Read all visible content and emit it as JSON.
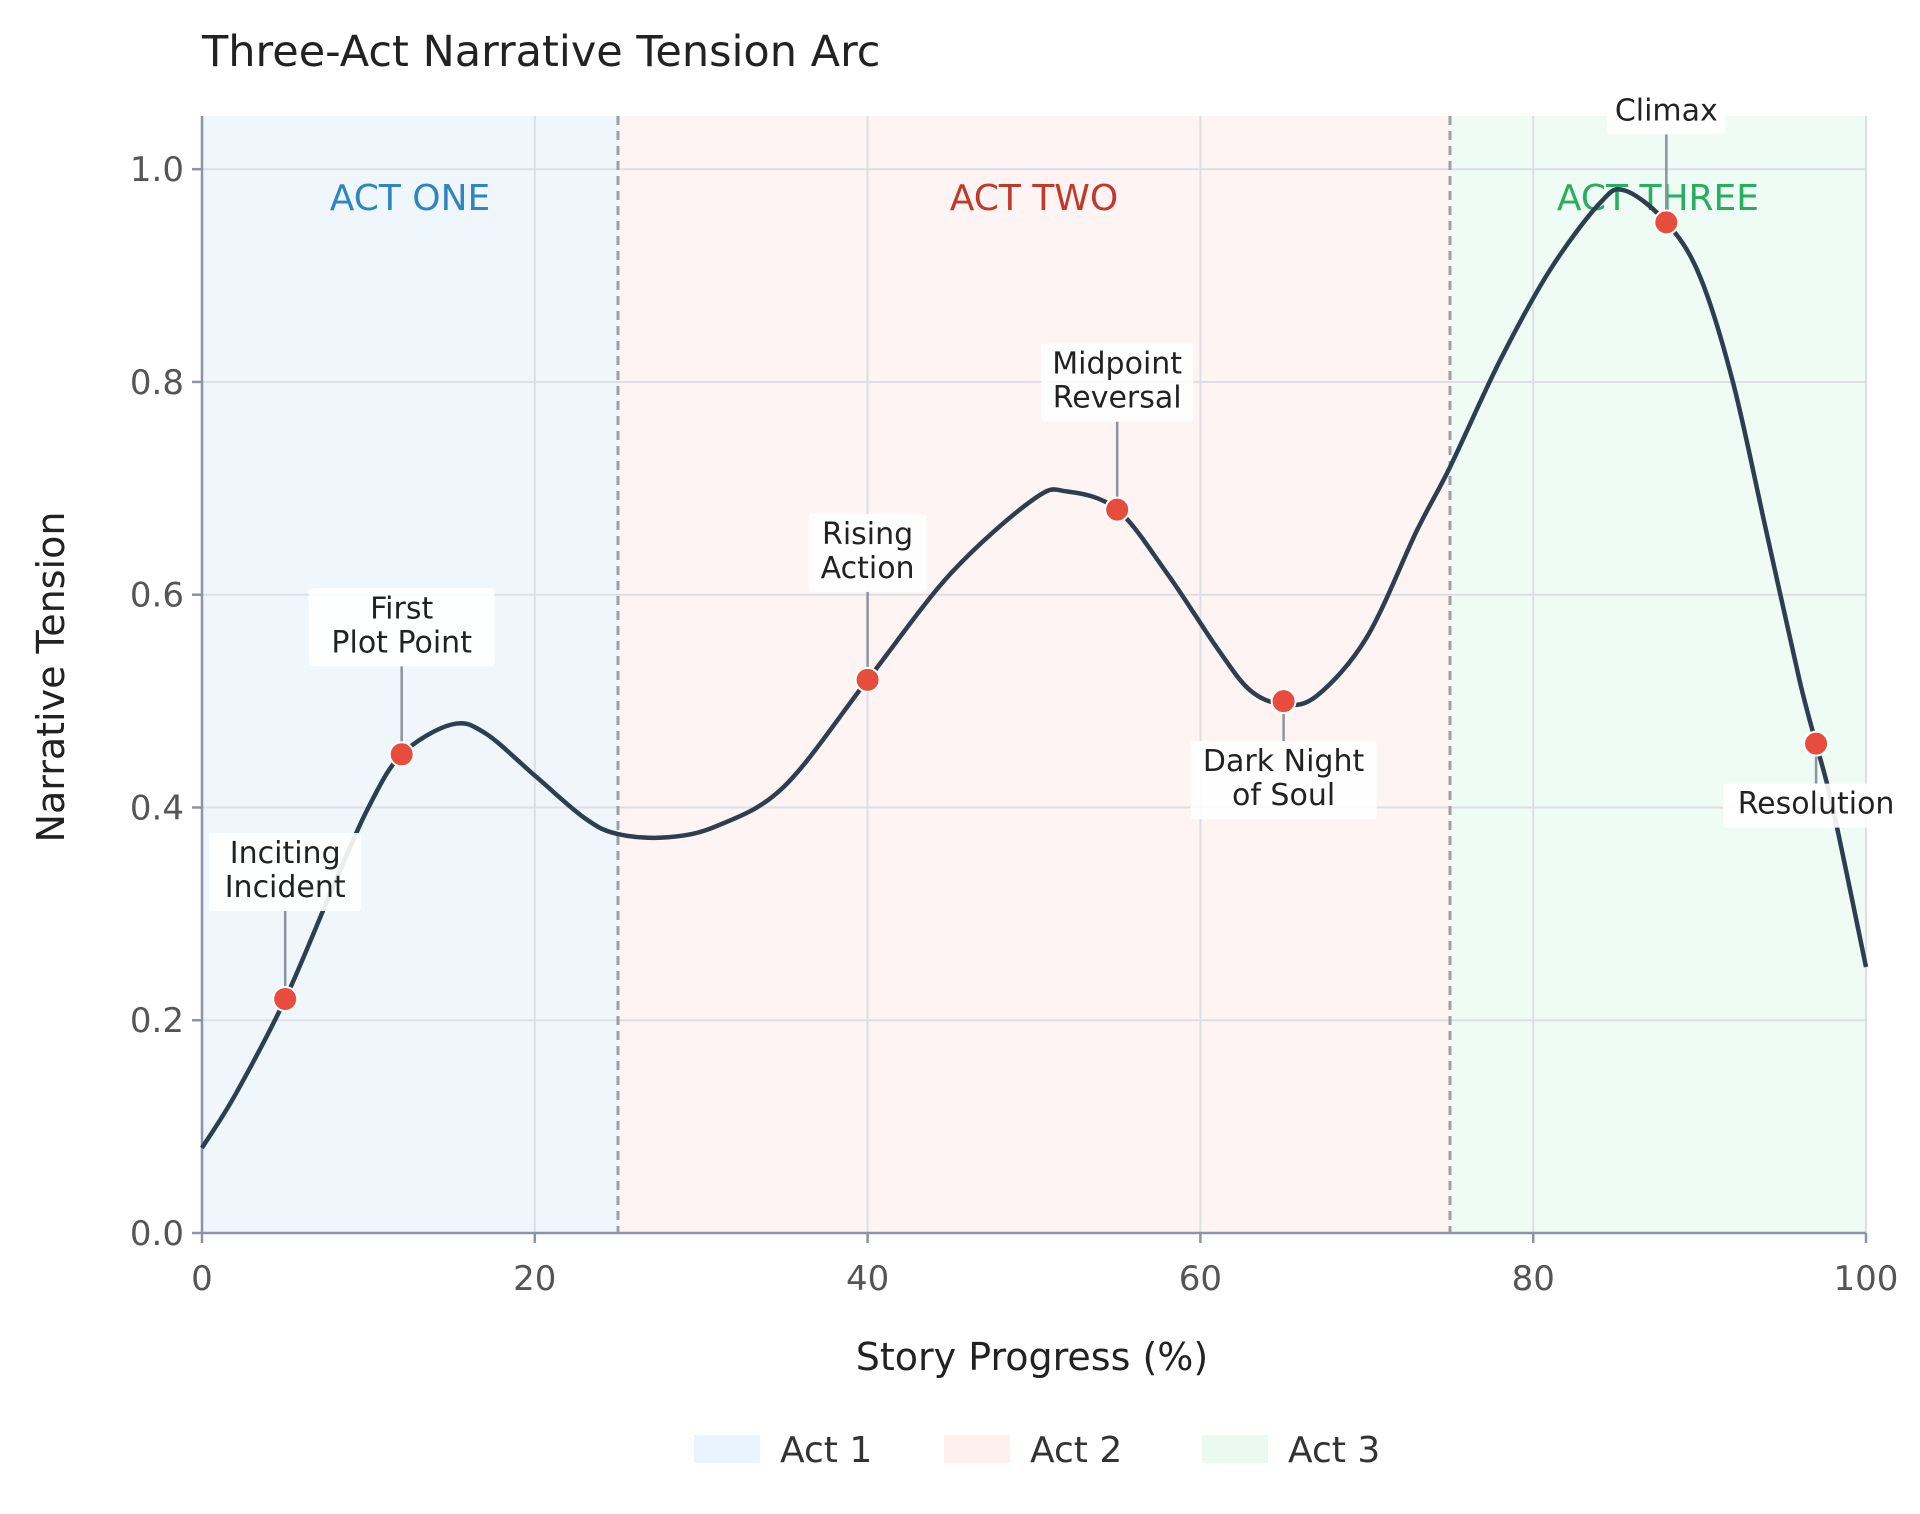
{
  "chart_data": {
    "type": "line",
    "title": "Three-Act Narrative Tension Arc",
    "xlabel": "Story Progress (%)",
    "ylabel": "Narrative Tension",
    "xlim": [
      0,
      100
    ],
    "ylim": [
      0,
      1.05
    ],
    "xticks": [
      0,
      20,
      40,
      60,
      80,
      100
    ],
    "yticks": [
      0.0,
      0.2,
      0.4,
      0.6,
      0.8,
      1.0
    ],
    "xtick_labels": [
      "0",
      "20",
      "40",
      "60",
      "80",
      "100"
    ],
    "ytick_labels": [
      "0.0",
      "0.2",
      "0.4",
      "0.6",
      "0.8",
      "1.0"
    ],
    "grid": true,
    "line_color": "#2c3e50",
    "marker_color": "#e74c3c",
    "acts": [
      {
        "name": "ACT ONE",
        "legend": "Act 1",
        "start": 0,
        "end": 25,
        "fill": "#eaf4fc",
        "label_color": "#2e86c1"
      },
      {
        "name": "ACT TWO",
        "legend": "Act 2",
        "start": 25,
        "end": 75,
        "fill": "#fdf0ef",
        "label_color": "#c0392b"
      },
      {
        "name": "ACT THREE",
        "legend": "Act 3",
        "start": 75,
        "end": 100,
        "fill": "#eafaf1",
        "label_color": "#27ae60"
      }
    ],
    "act_boundaries": [
      25,
      75
    ],
    "legend_position": "bottom-center",
    "curve": {
      "x": [
        0,
        2,
        5,
        8,
        10,
        12,
        15,
        17,
        20,
        23,
        25,
        28,
        31,
        35,
        40,
        45,
        50,
        52,
        55,
        58,
        61,
        63,
        65,
        67,
        70,
        73,
        75,
        78,
        81,
        84,
        85.5,
        88,
        90,
        92,
        94,
        96,
        97,
        98,
        100
      ],
      "y": [
        0.08,
        0.13,
        0.22,
        0.33,
        0.4,
        0.45,
        0.478,
        0.47,
        0.43,
        0.39,
        0.375,
        0.372,
        0.383,
        0.42,
        0.52,
        0.62,
        0.69,
        0.697,
        0.68,
        0.62,
        0.55,
        0.51,
        0.497,
        0.505,
        0.56,
        0.66,
        0.72,
        0.82,
        0.905,
        0.968,
        0.98,
        0.95,
        0.9,
        0.8,
        0.66,
        0.52,
        0.46,
        0.4,
        0.25
      ]
    },
    "events": [
      {
        "label": [
          "Inciting",
          "Incident"
        ],
        "x": 5,
        "y": 0.22,
        "pos": "above"
      },
      {
        "label": [
          "First",
          "Plot Point"
        ],
        "x": 12,
        "y": 0.45,
        "pos": "above"
      },
      {
        "label": [
          "Rising",
          "Action"
        ],
        "x": 40,
        "y": 0.52,
        "pos": "above"
      },
      {
        "label": [
          "Midpoint",
          "Reversal"
        ],
        "x": 55,
        "y": 0.68,
        "pos": "above"
      },
      {
        "label": [
          "Dark Night",
          "of Soul"
        ],
        "x": 65,
        "y": 0.5,
        "pos": "below"
      },
      {
        "label": [
          "Climax"
        ],
        "x": 88,
        "y": 0.95,
        "pos": "above"
      },
      {
        "label": [
          "Resolution"
        ],
        "x": 97,
        "y": 0.46,
        "pos": "below"
      }
    ]
  }
}
